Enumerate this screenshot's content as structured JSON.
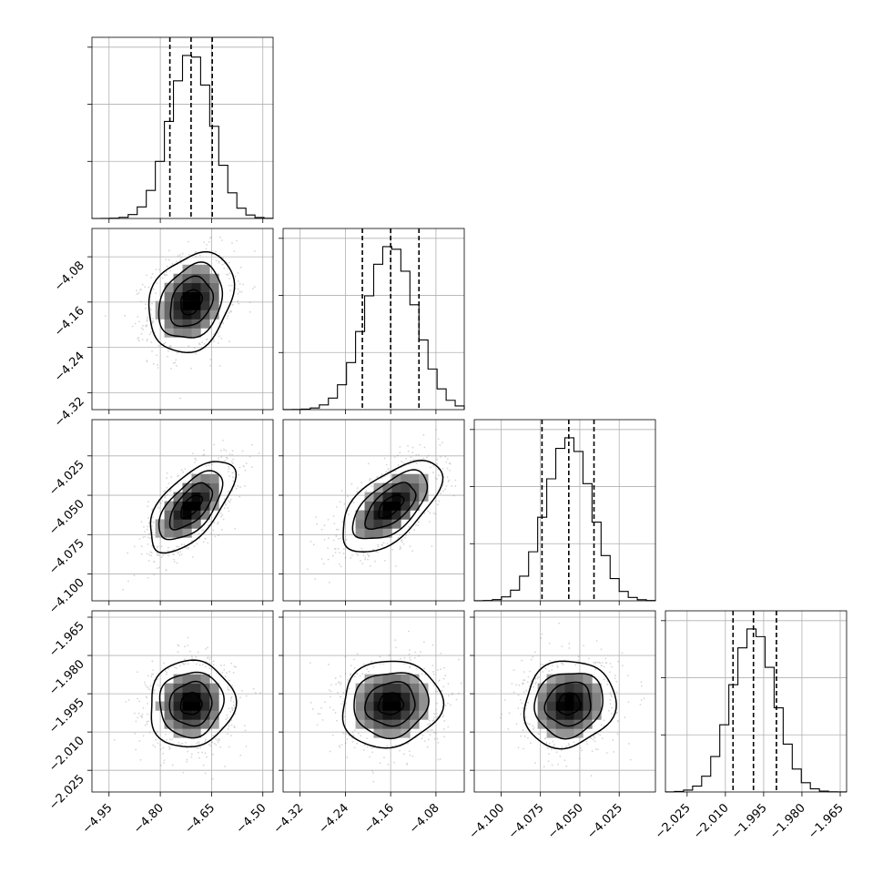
{
  "chart_data": {
    "type": "corner",
    "n_params": 4,
    "params": [
      {
        "mean": -4.71,
        "std": 0.062,
        "q16": -4.772,
        "q50": -4.71,
        "q84": -4.648,
        "range": [
          -5.0,
          -4.47
        ]
      },
      {
        "mean": -4.16,
        "std": 0.044,
        "q16": -4.21,
        "q50": -4.16,
        "q84": -4.11,
        "range": [
          -4.35,
          -4.03
        ]
      },
      {
        "mean": -4.057,
        "std": 0.0145,
        "q16": -4.074,
        "q50": -4.057,
        "q84": -4.041,
        "range": [
          -4.117,
          -4.002
        ]
      },
      {
        "mean": -1.999,
        "std": 0.0085,
        "q16": -2.007,
        "q50": -1.999,
        "q84": -1.99,
        "range": [
          -2.0335,
          -1.9625
        ]
      }
    ],
    "correlations": [
      {
        "i": 1,
        "j": 0,
        "rho": 0.25
      },
      {
        "i": 2,
        "j": 0,
        "rho": 0.62
      },
      {
        "i": 2,
        "j": 1,
        "rho": 0.6
      },
      {
        "i": 3,
        "j": 0,
        "rho": 0.05
      },
      {
        "i": 3,
        "j": 1,
        "rho": 0.08
      },
      {
        "i": 3,
        "j": 2,
        "rho": 0.1
      }
    ],
    "x_ticks": [
      [
        "−4.95",
        "−4.80",
        "−4.65",
        "−4.50"
      ],
      [
        "−4.32",
        "−4.24",
        "−4.16",
        "−4.08"
      ],
      [
        "−4.100",
        "−4.075",
        "−4.050",
        "−4.025"
      ],
      [
        "−2.025",
        "−2.010",
        "−1.995",
        "−1.980",
        "−1.965"
      ]
    ],
    "x_tick_values": [
      [
        -4.95,
        -4.8,
        -4.65,
        -4.5
      ],
      [
        -4.32,
        -4.24,
        -4.16,
        -4.08
      ],
      [
        -4.1,
        -4.075,
        -4.05,
        -4.025
      ],
      [
        -2.025,
        -2.01,
        -1.995,
        -1.98,
        -1.965
      ]
    ],
    "y_ticks": [
      [],
      [
        "−4.08",
        "−4.16",
        "−4.24",
        "−4.32"
      ],
      [
        "−4.025",
        "−4.050",
        "−4.075",
        "−4.100"
      ],
      [
        "−1.965",
        "−1.980",
        "−1.995",
        "−2.010",
        "−2.025"
      ]
    ],
    "y_tick_values": [
      [],
      [
        -4.08,
        -4.16,
        -4.24,
        -4.32
      ],
      [
        -4.025,
        -4.05,
        -4.075,
        -4.1
      ],
      [
        -1.965,
        -1.98,
        -1.995,
        -2.01,
        -2.025
      ]
    ],
    "grid": true,
    "hist_bins": 20,
    "quantiles": [
      0.16,
      0.5,
      0.84
    ]
  }
}
